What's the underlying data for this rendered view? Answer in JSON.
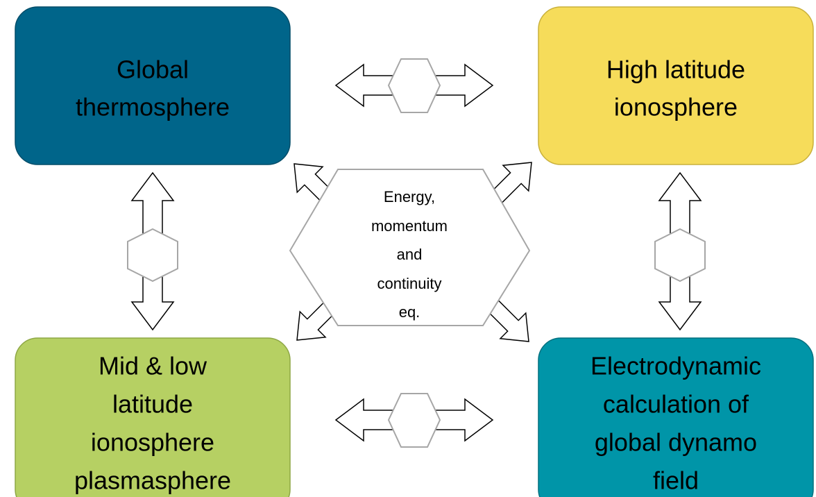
{
  "nodes": [
    {
      "lines": [
        "Global",
        "thermosphere"
      ]
    },
    {
      "lines": [
        "High latitude",
        "ionosphere"
      ]
    },
    {
      "lines": [
        "Mid & low",
        "latitude",
        "ionosphere",
        "plasmasphere"
      ]
    },
    {
      "lines": [
        "Electrodynamic",
        "calculation of",
        "global dynamo",
        "field"
      ]
    }
  ],
  "center": {
    "lines": [
      "Energy,",
      "momentum",
      "and",
      "continuity",
      "eq."
    ]
  }
}
